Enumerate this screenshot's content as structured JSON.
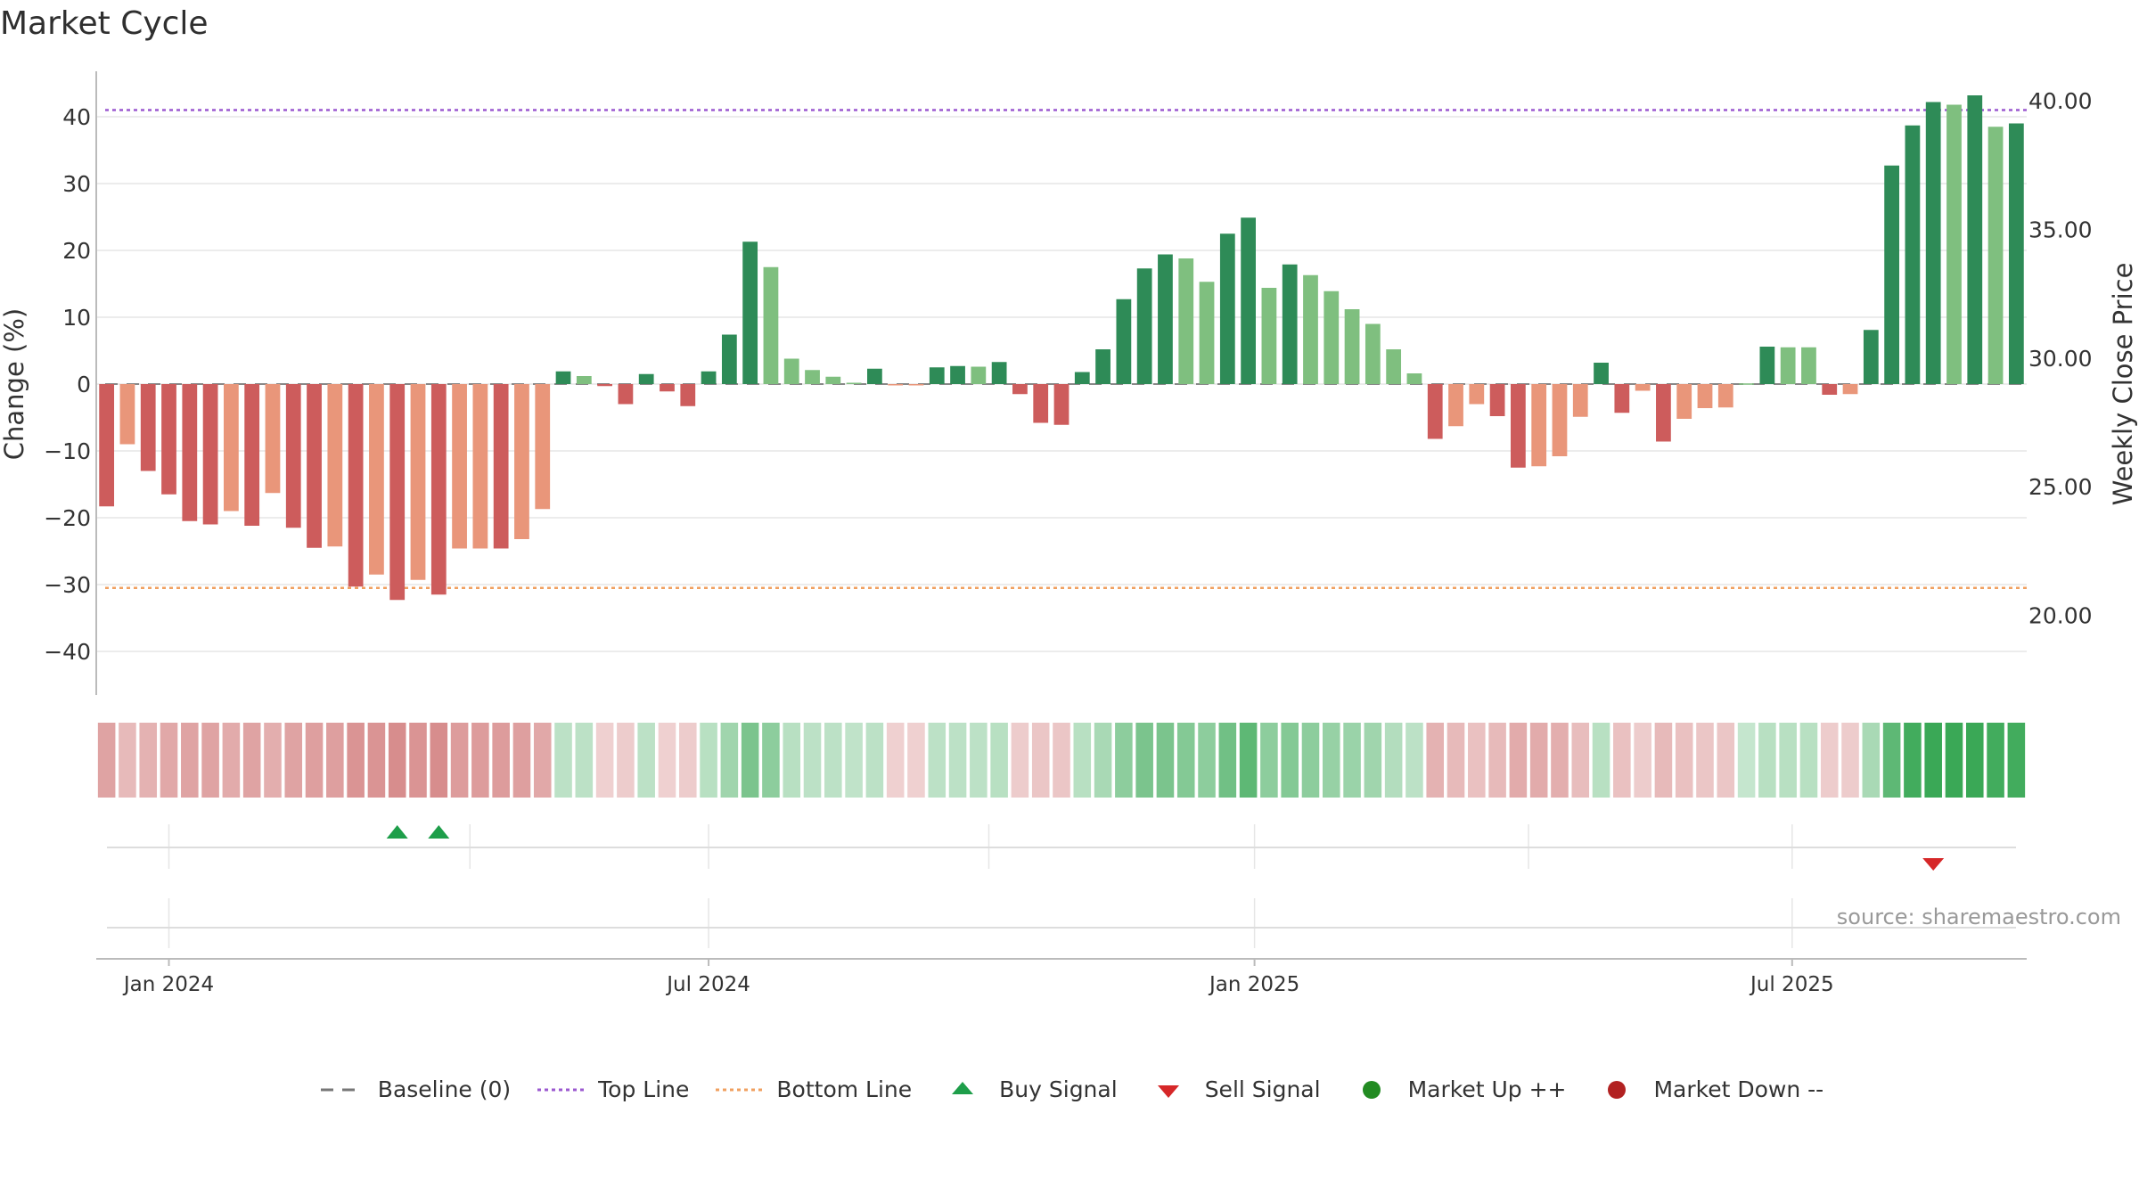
{
  "title": "Market Cycle",
  "source": "source: sharemaestro.com",
  "colors": {
    "up_dark": "#2e8b57",
    "up_light": "#7fbf7f",
    "down_dark": "#cd5c5c",
    "down_light": "#e9967a",
    "top_line": "#9b59d0",
    "bottom_line": "#f0a060",
    "buy": "#1e9e4a",
    "sell": "#d62728",
    "market_up": "#228b22",
    "market_down": "#b22222",
    "baseline": "#888888"
  },
  "legend": {
    "baseline": "Baseline (0)",
    "top_line": "Top Line",
    "bottom_line": "Bottom Line",
    "buy": "Buy Signal",
    "sell": "Sell Signal",
    "market_up": "Market Up ++",
    "market_down": "Market Down --"
  },
  "chart_data": {
    "type": "bar",
    "ylabel": "Change (%)",
    "y2label": "Weekly Close Price",
    "ylim": [
      -47,
      47
    ],
    "y2lim": [
      16.9,
      41.15
    ],
    "yticks": [
      "40",
      "30",
      "20",
      "10",
      "0",
      "−10",
      "−20",
      "−30",
      "−40"
    ],
    "y2ticks": [
      "40.00",
      "35.00",
      "30.00",
      "25.00",
      "20.00"
    ],
    "xticks": [
      {
        "label": "Jan 2024",
        "week": 3
      },
      {
        "label": "Jul 2024",
        "week": 29
      },
      {
        "label": "Jan 2025",
        "week": 55.3
      },
      {
        "label": "Jul 2025",
        "week": 81.2
      }
    ],
    "top_line": 41,
    "bottom_line": -30.5,
    "values": [
      -18.3,
      -9,
      -13,
      -16.5,
      -20.5,
      -21,
      -19,
      -21.2,
      -16.3,
      -21.5,
      -24.5,
      -24.3,
      -30.3,
      -28.5,
      -32.3,
      -29.3,
      -31.5,
      -24.6,
      -24.6,
      -24.6,
      -23.2,
      -18.7,
      1.9,
      1.2,
      -0.3,
      -3,
      1.5,
      -1.1,
      -3.3,
      1.9,
      7.4,
      21.3,
      17.5,
      3.8,
      2.1,
      1.1,
      0.2,
      2.3,
      -0.2,
      -0.2,
      2.5,
      2.7,
      2.6,
      3.3,
      -1.5,
      -5.8,
      -6.1,
      1.8,
      5.2,
      12.7,
      17.3,
      19.4,
      18.8,
      15.3,
      22.5,
      24.9,
      14.4,
      17.9,
      16.3,
      13.9,
      11.2,
      9,
      5.2,
      1.6,
      -8.2,
      -6.3,
      -3,
      -4.8,
      -12.5,
      -12.3,
      -10.8,
      -4.9,
      3.2,
      -4.3,
      -1,
      -8.6,
      -5.2,
      -3.6,
      -3.5,
      0.1,
      5.6,
      5.5,
      5.5,
      -1.6,
      -1.5,
      8.1,
      32.7,
      38.7,
      42.2,
      41.8,
      43.2,
      38.5,
      39
    ],
    "shades": [
      "dark",
      "light",
      "dark",
      "dark",
      "dark",
      "dark",
      "light",
      "dark",
      "light",
      "dark",
      "dark",
      "light",
      "dark",
      "light",
      "dark",
      "light",
      "dark",
      "light",
      "light",
      "dark",
      "light",
      "light",
      "dark",
      "light",
      "dark",
      "dark",
      "dark",
      "dark",
      "dark",
      "dark",
      "dark",
      "dark",
      "light",
      "light",
      "light",
      "light",
      "light",
      "dark",
      "light",
      "light",
      "dark",
      "dark",
      "light",
      "dark",
      "dark",
      "dark",
      "dark",
      "dark",
      "dark",
      "dark",
      "dark",
      "dark",
      "light",
      "light",
      "dark",
      "dark",
      "light",
      "dark",
      "light",
      "light",
      "light",
      "light",
      "light",
      "light",
      "dark",
      "light",
      "light",
      "dark",
      "dark",
      "light",
      "light",
      "light",
      "dark",
      "dark",
      "light",
      "dark",
      "light",
      "light",
      "light",
      "light",
      "dark",
      "light",
      "light",
      "dark",
      "light",
      "dark",
      "dark",
      "dark",
      "dark",
      "light",
      "dark",
      "light",
      "dark"
    ],
    "heat_strip": [
      0.45,
      0.3,
      0.35,
      0.42,
      0.45,
      0.45,
      0.4,
      0.45,
      0.38,
      0.45,
      0.48,
      0.48,
      0.55,
      0.55,
      0.6,
      0.55,
      0.6,
      0.5,
      0.5,
      0.5,
      0.48,
      0.42,
      0.2,
      0.2,
      0.15,
      0.18,
      0.2,
      0.15,
      0.18,
      0.22,
      0.35,
      0.55,
      0.45,
      0.22,
      0.2,
      0.2,
      0.18,
      0.2,
      0.15,
      0.15,
      0.2,
      0.2,
      0.2,
      0.22,
      0.18,
      0.22,
      0.22,
      0.22,
      0.3,
      0.45,
      0.55,
      0.55,
      0.5,
      0.45,
      0.6,
      0.7,
      0.45,
      0.5,
      0.45,
      0.4,
      0.38,
      0.35,
      0.25,
      0.2,
      0.35,
      0.3,
      0.25,
      0.3,
      0.4,
      0.4,
      0.38,
      0.28,
      0.22,
      0.25,
      0.18,
      0.3,
      0.25,
      0.22,
      0.22,
      0.15,
      0.22,
      0.22,
      0.22,
      0.18,
      0.18,
      0.3,
      0.7,
      0.85,
      0.9,
      0.9,
      0.9,
      0.85,
      0.85
    ],
    "buy_signals": [
      14,
      16
    ],
    "sell_signals": [
      88
    ]
  }
}
